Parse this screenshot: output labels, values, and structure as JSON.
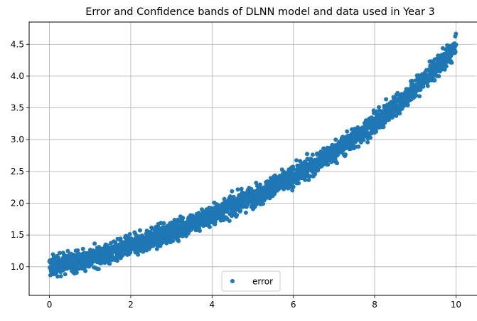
{
  "chart_data": {
    "type": "scatter",
    "title": "Error and Confidence bands of DLNN model and data used in Year 3",
    "xlabel": "",
    "ylabel": "",
    "xlim": [
      -0.5,
      10.5
    ],
    "ylim": [
      0.55,
      4.85
    ],
    "xticks": [
      "0",
      "2",
      "4",
      "6",
      "8",
      "10"
    ],
    "yticks": [
      "1.0",
      "1.5",
      "2.0",
      "2.5",
      "3.0",
      "3.5",
      "4.0",
      "4.5"
    ],
    "grid": true,
    "legend_position": "lower center",
    "series": [
      {
        "name": "error",
        "color": "#1f77b4",
        "marker": "circle",
        "trend": {
          "x": [
            0,
            1,
            2,
            3,
            4,
            5,
            6,
            7,
            8,
            9,
            10
          ],
          "y": [
            1.0,
            1.13,
            1.32,
            1.55,
            1.81,
            2.1,
            2.42,
            2.8,
            3.25,
            3.8,
            4.45
          ]
        },
        "noise_band": 0.2
      }
    ]
  }
}
